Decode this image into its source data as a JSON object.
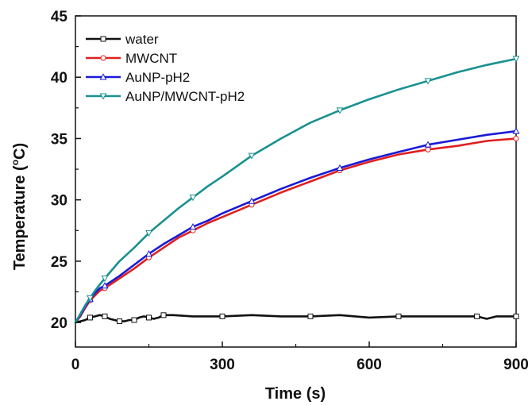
{
  "chart_data": {
    "type": "line",
    "title": "",
    "xlabel": "Time (s)",
    "ylabel_main": "Temperature (",
    "ylabel_deg": "o",
    "ylabel_unit": "C)",
    "xlim": [
      0,
      900
    ],
    "ylim": [
      18,
      45
    ],
    "xticks": [
      0,
      300,
      600,
      900
    ],
    "yticks": [
      20,
      25,
      30,
      35,
      40,
      45
    ],
    "grid": false,
    "legend_position": "top-left",
    "series": [
      {
        "name": "water",
        "color": "#111111",
        "marker": "square",
        "x": [
          0,
          10,
          20,
          30,
          40,
          50,
          60,
          70,
          80,
          90,
          100,
          110,
          120,
          130,
          140,
          150,
          160,
          170,
          180,
          200,
          240,
          300,
          360,
          420,
          480,
          540,
          600,
          660,
          720,
          780,
          820,
          840,
          860,
          900
        ],
        "y": [
          20.0,
          20.1,
          20.2,
          20.4,
          20.5,
          20.6,
          20.5,
          20.3,
          20.2,
          20.1,
          20.1,
          20.2,
          20.2,
          20.4,
          20.5,
          20.4,
          20.3,
          20.4,
          20.6,
          20.6,
          20.5,
          20.5,
          20.6,
          20.5,
          20.5,
          20.6,
          20.4,
          20.5,
          20.5,
          20.5,
          20.5,
          20.3,
          20.5,
          20.5
        ]
      },
      {
        "name": "MWCNT",
        "color": "#e02020",
        "marker": "circle",
        "x": [
          0,
          10,
          20,
          30,
          40,
          50,
          60,
          90,
          120,
          150,
          180,
          210,
          240,
          270,
          300,
          360,
          420,
          480,
          540,
          600,
          660,
          720,
          780,
          840,
          900
        ],
        "y": [
          20.0,
          20.5,
          21.2,
          21.8,
          22.2,
          22.6,
          22.8,
          23.6,
          24.4,
          25.3,
          26.1,
          26.9,
          27.5,
          28.1,
          28.6,
          29.6,
          30.6,
          31.5,
          32.4,
          33.1,
          33.7,
          34.1,
          34.4,
          34.8,
          35.0
        ]
      },
      {
        "name": "AuNP-pH2",
        "color": "#1a1ad8",
        "marker": "triangle-up",
        "x": [
          0,
          10,
          20,
          30,
          40,
          50,
          60,
          90,
          120,
          150,
          180,
          210,
          240,
          270,
          300,
          360,
          420,
          480,
          540,
          600,
          660,
          720,
          780,
          840,
          900
        ],
        "y": [
          20.0,
          20.6,
          21.3,
          21.9,
          22.4,
          22.8,
          23.0,
          23.8,
          24.7,
          25.6,
          26.4,
          27.1,
          27.8,
          28.3,
          28.9,
          29.9,
          30.9,
          31.8,
          32.6,
          33.3,
          33.9,
          34.5,
          34.9,
          35.3,
          35.6
        ]
      },
      {
        "name": "AuNP/MWCNT-pH2",
        "color": "#1a9090",
        "marker": "triangle-down",
        "x": [
          0,
          10,
          20,
          30,
          40,
          50,
          60,
          90,
          120,
          150,
          180,
          210,
          240,
          270,
          300,
          360,
          420,
          480,
          540,
          600,
          660,
          720,
          780,
          840,
          900
        ],
        "y": [
          20.0,
          20.7,
          21.4,
          22.0,
          22.6,
          23.1,
          23.6,
          25.0,
          26.1,
          27.3,
          28.3,
          29.3,
          30.2,
          31.1,
          31.9,
          33.6,
          35.0,
          36.3,
          37.3,
          38.2,
          39.0,
          39.7,
          40.4,
          41.0,
          41.5
        ]
      }
    ]
  }
}
